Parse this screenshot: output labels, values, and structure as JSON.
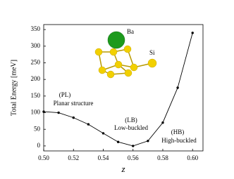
{
  "chart_data": {
    "type": "line",
    "x": [
      0.5,
      0.51,
      0.52,
      0.53,
      0.54,
      0.55,
      0.56,
      0.57,
      0.58,
      0.59,
      0.6
    ],
    "series": [
      {
        "color": "#000000",
        "values": [
          103,
          100,
          85,
          65,
          38,
          12,
          0,
          15,
          70,
          175,
          340
        ]
      }
    ],
    "xlabel": "z",
    "ylabel": "Total Energy [meV]",
    "xlim": [
      0.5,
      0.607
    ],
    "ylim": [
      -15,
      365
    ],
    "xticks": [
      {
        "value": 0.5,
        "label": "0.50"
      },
      {
        "value": 0.52,
        "label": "0.52"
      },
      {
        "value": 0.54,
        "label": "0.54"
      },
      {
        "value": 0.56,
        "label": "0.56"
      },
      {
        "value": 0.58,
        "label": "0.58"
      },
      {
        "value": 0.6,
        "label": "0.60"
      }
    ],
    "yticks": [
      0,
      50,
      100,
      150,
      200,
      250,
      300,
      350
    ],
    "annotations": [
      "(PL)",
      "Planar structure",
      "(LB)",
      "Low-buckled",
      "(HB)",
      "High-buckled",
      "Ba",
      "Si"
    ]
  }
}
